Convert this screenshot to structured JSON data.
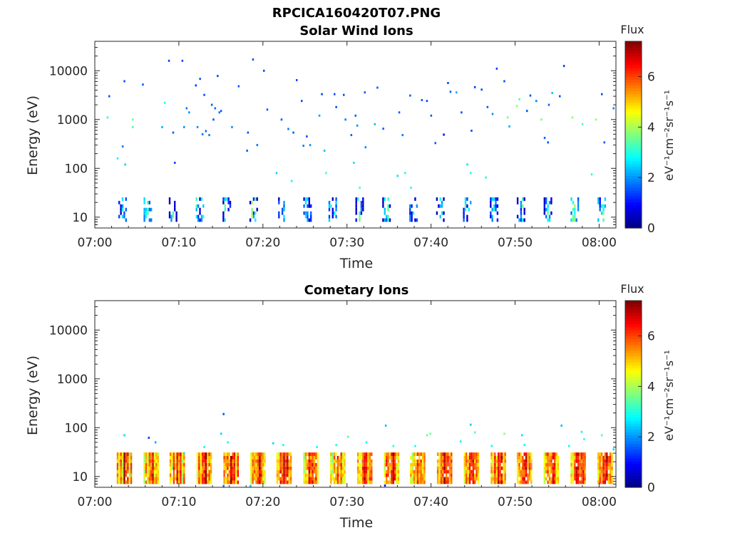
{
  "figure": {
    "title": "RPCICA160420T07.PNG"
  },
  "colorbar": {
    "title": "Flux",
    "unit_label": "eV⁻¹cm⁻²sr⁻¹s⁻¹",
    "ticks": [
      "0",
      "2",
      "4",
      "6"
    ],
    "range": [
      0,
      7.4
    ],
    "colormap": "jet"
  },
  "chart_data": [
    {
      "type": "heatmap",
      "title": "Solar Wind Ions",
      "xlabel": "Time",
      "ylabel": "Energy (eV)",
      "x_ticks": [
        "07:00",
        "07:10",
        "07:20",
        "07:30",
        "07:40",
        "07:50",
        "08:00"
      ],
      "y_ticks": [
        "10",
        "100",
        "1000",
        "10000"
      ],
      "yscale": "log",
      "xlim": [
        "07:00",
        "08:02"
      ],
      "ylim": [
        6,
        40000
      ],
      "scan_period_min": 3.2,
      "low_energy_band_eV": [
        8,
        28
      ],
      "scans": [
        {
          "start_min": 2.8,
          "flux": [
            2.3,
            0.8,
            3.2,
            2.0
          ]
        },
        {
          "start_min": 5.8,
          "flux": [
            2.8,
            3.5,
            4.0,
            2.5
          ]
        },
        {
          "start_min": 8.8,
          "flux": [
            0.9,
            2.6,
            3.8,
            1.2
          ]
        },
        {
          "start_min": 12.0,
          "flux": [
            3.4,
            2.2,
            1.0,
            3.0
          ]
        },
        {
          "start_min": 15.2,
          "flux": [
            1.5,
            3.8,
            4.2,
            2.1
          ]
        },
        {
          "start_min": 18.4,
          "flux": [
            0.7,
            4.5,
            2.3,
            3.6
          ]
        },
        {
          "start_min": 21.6,
          "flux": [
            2.9,
            1.6,
            3.9,
            2.4
          ]
        },
        {
          "start_min": 24.8,
          "flux": [
            1.8,
            3.0,
            2.5,
            0.9
          ]
        },
        {
          "start_min": 27.8,
          "flux": [
            2.6,
            3.7,
            1.4,
            3.2
          ]
        },
        {
          "start_min": 31.0,
          "flux": [
            1.1,
            3.9,
            4.4,
            2.0
          ]
        },
        {
          "start_min": 34.2,
          "flux": [
            0.8,
            3.2,
            2.7,
            4.3
          ]
        },
        {
          "start_min": 37.4,
          "flux": [
            2.4,
            1.3,
            3.5,
            0.7
          ]
        },
        {
          "start_min": 40.6,
          "flux": [
            0.6,
            2.1,
            3.3,
            2.8
          ]
        },
        {
          "start_min": 43.8,
          "flux": [
            2.2,
            3.6,
            1.5,
            3.9
          ]
        },
        {
          "start_min": 47.0,
          "flux": [
            1.6,
            2.8,
            3.4,
            2.3
          ]
        },
        {
          "start_min": 50.2,
          "flux": [
            0.9,
            3.0,
            2.1,
            3.7
          ]
        },
        {
          "start_min": 53.4,
          "flux": [
            1.2,
            2.5,
            3.8,
            2.9
          ]
        },
        {
          "start_min": 56.6,
          "flux": [
            2.7,
            3.9,
            4.1,
            2.2
          ]
        },
        {
          "start_min": 59.8,
          "flux": [
            3.1,
            2.0,
            3.6,
            4.0
          ]
        }
      ],
      "scatter": [
        [
          1.5,
          1100,
          3.0
        ],
        [
          1.7,
          3000,
          1.5
        ],
        [
          2.7,
          160,
          2.8
        ],
        [
          3.3,
          280,
          1.8
        ],
        [
          3.5,
          6100,
          1.5
        ],
        [
          3.6,
          120,
          2.5
        ],
        [
          4.5,
          1000,
          3.5
        ],
        [
          4.5,
          700,
          3.3
        ],
        [
          5.7,
          5200,
          1.6
        ],
        [
          8.0,
          700,
          2.2
        ],
        [
          8.3,
          2200,
          3.0
        ],
        [
          8.8,
          16000,
          1.4
        ],
        [
          9.3,
          540,
          1.6
        ],
        [
          9.5,
          130,
          1.4
        ],
        [
          10.4,
          16000,
          1.5
        ],
        [
          10.6,
          700,
          2.0
        ],
        [
          10.9,
          1700,
          1.8
        ],
        [
          11.2,
          1400,
          2.0
        ],
        [
          12.0,
          5000,
          1.4
        ],
        [
          12.2,
          700,
          2.0
        ],
        [
          12.5,
          6800,
          1.5
        ],
        [
          12.8,
          500,
          1.8
        ],
        [
          13.0,
          3200,
          1.5
        ],
        [
          13.2,
          580,
          1.7
        ],
        [
          13.6,
          480,
          1.8
        ],
        [
          13.9,
          2000,
          1.6
        ],
        [
          14.1,
          1000,
          1.5
        ],
        [
          14.3,
          1700,
          1.7
        ],
        [
          14.6,
          7800,
          1.5
        ],
        [
          14.8,
          1400,
          1.8
        ],
        [
          15.0,
          1500,
          1.6
        ],
        [
          16.3,
          700,
          2.0
        ],
        [
          17.1,
          4800,
          1.6
        ],
        [
          18.1,
          230,
          1.6
        ],
        [
          18.2,
          540,
          1.5
        ],
        [
          18.8,
          17000,
          1.5
        ],
        [
          19.3,
          300,
          1.8
        ],
        [
          20.1,
          10000,
          1.5
        ],
        [
          20.5,
          1600,
          1.6
        ],
        [
          21.6,
          80,
          2.5
        ],
        [
          22.2,
          1000,
          1.6
        ],
        [
          23.0,
          640,
          1.8
        ],
        [
          23.4,
          55,
          2.8
        ],
        [
          23.6,
          540,
          1.6
        ],
        [
          24.0,
          6400,
          1.5
        ],
        [
          24.6,
          2400,
          1.5
        ],
        [
          25.2,
          450,
          1.5
        ],
        [
          24.8,
          290,
          1.8
        ],
        [
          26.7,
          1200,
          2.1
        ],
        [
          27.0,
          3300,
          1.4
        ],
        [
          27.3,
          230,
          2.3
        ],
        [
          27.5,
          80,
          3.2
        ],
        [
          28.5,
          3300,
          1.5
        ],
        [
          28.7,
          1800,
          1.5
        ],
        [
          29.6,
          3200,
          1.5
        ],
        [
          29.8,
          1000,
          1.8
        ],
        [
          30.5,
          480,
          1.6
        ],
        [
          30.8,
          130,
          2.6
        ],
        [
          31.0,
          1200,
          1.6
        ],
        [
          31.2,
          750,
          2.0
        ],
        [
          31.5,
          40,
          3.3
        ],
        [
          32.1,
          3600,
          1.6
        ],
        [
          32.2,
          270,
          1.9
        ],
        [
          33.3,
          800,
          2.3
        ],
        [
          33.6,
          4500,
          1.6
        ],
        [
          34.3,
          650,
          1.6
        ],
        [
          36.0,
          70,
          2.6
        ],
        [
          36.2,
          1400,
          1.6
        ],
        [
          36.6,
          480,
          1.8
        ],
        [
          36.9,
          80,
          3.0
        ],
        [
          37.5,
          3100,
          1.6
        ],
        [
          38.9,
          2500,
          1.6
        ],
        [
          39.5,
          2400,
          1.5
        ],
        [
          40.0,
          1200,
          1.6
        ],
        [
          40.5,
          330,
          1.6
        ],
        [
          41.5,
          490,
          0.8
        ],
        [
          42.0,
          5600,
          1.5
        ],
        [
          42.3,
          3700,
          1.6
        ],
        [
          43.0,
          3600,
          2.2
        ],
        [
          43.6,
          1400,
          1.5
        ],
        [
          44.3,
          120,
          2.6
        ],
        [
          44.7,
          80,
          3.0
        ],
        [
          44.8,
          590,
          1.5
        ],
        [
          45.2,
          4600,
          1.4
        ],
        [
          46.0,
          4100,
          1.5
        ],
        [
          46.5,
          65,
          3.0
        ],
        [
          46.7,
          1800,
          1.6
        ],
        [
          47.8,
          11000,
          1.4
        ],
        [
          47.3,
          1300,
          2.0
        ],
        [
          48.7,
          6100,
          1.5
        ],
        [
          49.1,
          1100,
          3.6
        ],
        [
          49.3,
          720,
          2.2
        ],
        [
          50.2,
          1900,
          3.8
        ],
        [
          50.5,
          2600,
          3.3
        ],
        [
          51.4,
          1500,
          1.5
        ],
        [
          51.8,
          3100,
          1.5
        ],
        [
          52.5,
          2400,
          1.9
        ],
        [
          53.1,
          1000,
          3.6
        ],
        [
          53.5,
          420,
          1.6
        ],
        [
          53.9,
          340,
          1.5
        ],
        [
          54.0,
          2000,
          1.7
        ],
        [
          54.4,
          3500,
          2.4
        ],
        [
          55.3,
          3000,
          1.5
        ],
        [
          55.8,
          12500,
          1.4
        ],
        [
          56.8,
          1100,
          3.8
        ],
        [
          58.0,
          800,
          3.3
        ],
        [
          59.1,
          75,
          3.0
        ],
        [
          59.6,
          1000,
          3.9
        ],
        [
          60.3,
          3300,
          1.5
        ],
        [
          60.6,
          340,
          1.6
        ],
        [
          61.7,
          1700,
          1.9
        ],
        [
          37.6,
          40,
          3.0
        ],
        [
          25.6,
          300,
          2.0
        ]
      ]
    },
    {
      "type": "heatmap",
      "title": "Cometary Ions",
      "xlabel": "Time",
      "ylabel": "Energy (eV)",
      "x_ticks": [
        "07:00",
        "07:10",
        "07:20",
        "07:30",
        "07:40",
        "07:50",
        "08:00"
      ],
      "y_ticks": [
        "10",
        "100",
        "1000",
        "10000"
      ],
      "yscale": "log",
      "xlim": [
        "07:00",
        "08:02"
      ],
      "ylim": [
        6,
        40000
      ],
      "scan_period_min": 3.2,
      "low_energy_band_eV": [
        7,
        32
      ],
      "scans": [
        {
          "start_min": 2.6,
          "flux": [
            6.8,
            5.5,
            6.3,
            4.8
          ]
        },
        {
          "start_min": 5.8,
          "flux": [
            5.6,
            6.4,
            5.0,
            5.7
          ]
        },
        {
          "start_min": 8.9,
          "flux": [
            6.5,
            5.3,
            6.6,
            5.0
          ]
        },
        {
          "start_min": 12.1,
          "flux": [
            6.0,
            6.8,
            5.4,
            6.1
          ]
        },
        {
          "start_min": 15.3,
          "flux": [
            6.9,
            5.9,
            6.4,
            5.3
          ]
        },
        {
          "start_min": 18.5,
          "flux": [
            5.7,
            6.6,
            6.0,
            5.5
          ]
        },
        {
          "start_min": 21.6,
          "flux": [
            6.4,
            5.6,
            6.8,
            5.9
          ]
        },
        {
          "start_min": 24.8,
          "flux": [
            5.5,
            6.2,
            5.8,
            6.6
          ]
        },
        {
          "start_min": 28.0,
          "flux": [
            5.9,
            4.9,
            6.1,
            5.3
          ]
        },
        {
          "start_min": 31.2,
          "flux": [
            6.6,
            6.0,
            5.4,
            6.3
          ]
        },
        {
          "start_min": 34.4,
          "flux": [
            5.8,
            6.9,
            6.2,
            5.1
          ]
        },
        {
          "start_min": 37.5,
          "flux": [
            6.2,
            5.4,
            6.0,
            5.6
          ]
        },
        {
          "start_min": 40.7,
          "flux": [
            6.7,
            5.8,
            6.5,
            5.9
          ]
        },
        {
          "start_min": 43.9,
          "flux": [
            5.9,
            6.3,
            5.6,
            6.4
          ]
        },
        {
          "start_min": 47.1,
          "flux": [
            6.4,
            5.7,
            6.8,
            5.2
          ]
        },
        {
          "start_min": 50.2,
          "flux": [
            6.1,
            6.5,
            5.9,
            6.2
          ]
        },
        {
          "start_min": 53.4,
          "flux": [
            5.6,
            6.2,
            6.6,
            5.4
          ]
        },
        {
          "start_min": 56.6,
          "flux": [
            6.3,
            5.5,
            6.1,
            6.7
          ]
        },
        {
          "start_min": 59.8,
          "flux": [
            6.0,
            6.6,
            5.7,
            6.3
          ]
        }
      ],
      "scatter": [
        [
          3.5,
          70,
          2.5
        ],
        [
          6.4,
          62,
          1.4
        ],
        [
          7.2,
          50,
          2.1
        ],
        [
          10.6,
          30,
          2.6
        ],
        [
          13.0,
          40,
          3.0
        ],
        [
          15.0,
          75,
          2.5
        ],
        [
          15.3,
          190,
          1.5
        ],
        [
          15.8,
          50,
          2.8
        ],
        [
          21.2,
          48,
          2.5
        ],
        [
          22.4,
          44,
          2.9
        ],
        [
          26.4,
          40,
          2.8
        ],
        [
          28.7,
          44,
          3.0
        ],
        [
          30.1,
          65,
          3.4
        ],
        [
          32.3,
          50,
          2.8
        ],
        [
          34.6,
          110,
          2.3
        ],
        [
          35.5,
          42,
          3.0
        ],
        [
          38.1,
          42,
          2.9
        ],
        [
          39.5,
          70,
          3.6
        ],
        [
          39.9,
          75,
          3.5
        ],
        [
          43.5,
          52,
          2.7
        ],
        [
          44.7,
          115,
          2.4
        ],
        [
          45.2,
          80,
          3.4
        ],
        [
          47.2,
          42,
          2.8
        ],
        [
          48.7,
          75,
          3.8
        ],
        [
          50.8,
          70,
          2.6
        ],
        [
          51.1,
          44,
          2.7
        ],
        [
          55.5,
          110,
          2.3
        ],
        [
          56.4,
          42,
          2.8
        ],
        [
          57.9,
          82,
          2.8
        ],
        [
          58.2,
          58,
          3.1
        ],
        [
          60.3,
          70,
          3.4
        ],
        [
          61.7,
          36,
          2.5
        ],
        [
          34.5,
          6.5,
          0.9
        ],
        [
          15.3,
          6.4,
          1.8
        ],
        [
          18.5,
          6.4,
          2.3
        ]
      ]
    }
  ]
}
